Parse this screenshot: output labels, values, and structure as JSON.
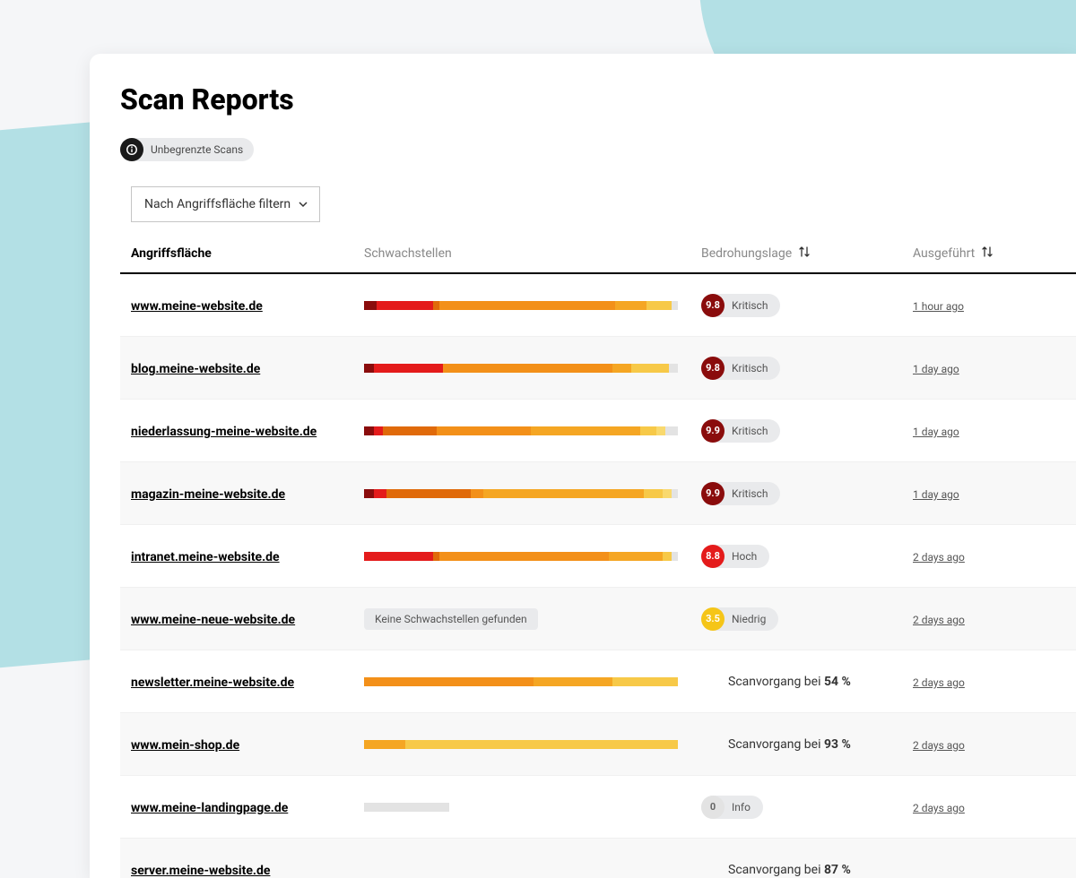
{
  "page": {
    "title": "Scan Reports"
  },
  "info_pill": {
    "text": "Unbegrenzte Scans"
  },
  "filter": {
    "label": "Nach Angriffsfläche filtern"
  },
  "columns": {
    "attack": "Angriffsfläche",
    "vuln": "Schwachstellen",
    "threat": "Bedrohungslage",
    "executed": "Ausgeführt"
  },
  "colors": {
    "dark_red": "#8a0c0c",
    "red": "#e41b1b",
    "dark_orange": "#e06a0a",
    "orange": "#f39019",
    "yellow_orange": "#f5a623",
    "yellow": "#f7c948",
    "light_yellow": "#f9d96e",
    "grey": "#e3e3e3",
    "score_critical": "#8a0c0c",
    "score_high": "#e41b1b",
    "score_low": "#f5c518",
    "score_zero": "#e3e3e3"
  },
  "scan_prefix": "Scanvorgang bei ",
  "rows": [
    {
      "url": "www.meine-website.de",
      "segments": [
        {
          "color": "dark_red",
          "pct": 4
        },
        {
          "color": "red",
          "pct": 18
        },
        {
          "color": "dark_orange",
          "pct": 2
        },
        {
          "color": "orange",
          "pct": 56
        },
        {
          "color": "yellow_orange",
          "pct": 10
        },
        {
          "color": "yellow",
          "pct": 8
        },
        {
          "color": "grey",
          "pct": 2
        }
      ],
      "threat": {
        "score": "9.8",
        "label": "Kritisch",
        "color": "score_critical"
      },
      "executed": "1 hour ago",
      "alt": false
    },
    {
      "url": "blog.meine-website.de",
      "segments": [
        {
          "color": "dark_red",
          "pct": 3
        },
        {
          "color": "red",
          "pct": 22
        },
        {
          "color": "orange",
          "pct": 54
        },
        {
          "color": "yellow_orange",
          "pct": 6
        },
        {
          "color": "yellow",
          "pct": 12
        },
        {
          "color": "grey",
          "pct": 3
        }
      ],
      "threat": {
        "score": "9.8",
        "label": "Kritisch",
        "color": "score_critical"
      },
      "executed": "1 day ago",
      "alt": true
    },
    {
      "url": "niederlassung-meine-website.de",
      "segments": [
        {
          "color": "dark_red",
          "pct": 3
        },
        {
          "color": "red",
          "pct": 3
        },
        {
          "color": "dark_orange",
          "pct": 17
        },
        {
          "color": "orange",
          "pct": 30
        },
        {
          "color": "yellow_orange",
          "pct": 35
        },
        {
          "color": "yellow",
          "pct": 5
        },
        {
          "color": "light_yellow",
          "pct": 3
        },
        {
          "color": "grey",
          "pct": 4
        }
      ],
      "threat": {
        "score": "9.9",
        "label": "Kritisch",
        "color": "score_critical"
      },
      "executed": "1 day ago",
      "alt": false
    },
    {
      "url": "magazin-meine-website.de",
      "segments": [
        {
          "color": "dark_red",
          "pct": 3
        },
        {
          "color": "red",
          "pct": 4
        },
        {
          "color": "dark_orange",
          "pct": 27
        },
        {
          "color": "orange",
          "pct": 4
        },
        {
          "color": "yellow_orange",
          "pct": 51
        },
        {
          "color": "yellow",
          "pct": 6
        },
        {
          "color": "light_yellow",
          "pct": 3
        },
        {
          "color": "grey",
          "pct": 2
        }
      ],
      "threat": {
        "score": "9.9",
        "label": "Kritisch",
        "color": "score_critical"
      },
      "executed": "1 day ago",
      "alt": true
    },
    {
      "url": "intranet.meine-website.de",
      "segments": [
        {
          "color": "red",
          "pct": 22
        },
        {
          "color": "dark_orange",
          "pct": 2
        },
        {
          "color": "orange",
          "pct": 54
        },
        {
          "color": "yellow_orange",
          "pct": 17
        },
        {
          "color": "yellow",
          "pct": 3
        },
        {
          "color": "grey",
          "pct": 2
        }
      ],
      "threat": {
        "score": "8.8",
        "label": "Hoch",
        "color": "score_high"
      },
      "executed": "2 days ago",
      "alt": false
    },
    {
      "url": "www.meine-neue-website.de",
      "no_vuln": "Keine Schwachstellen gefunden",
      "threat": {
        "score": "3.5",
        "label": "Niedrig",
        "color": "score_low"
      },
      "executed": "2 days ago",
      "alt": true
    },
    {
      "url": "newsletter.meine-website.de",
      "segments": [
        {
          "color": "orange",
          "pct": 54
        },
        {
          "color": "yellow_orange",
          "pct": 25
        },
        {
          "color": "yellow",
          "pct": 21
        }
      ],
      "scan": "54 %",
      "executed": "2 days ago",
      "alt": false
    },
    {
      "url": "www.mein-shop.de",
      "segments": [
        {
          "color": "yellow_orange",
          "pct": 13
        },
        {
          "color": "yellow",
          "pct": 87
        }
      ],
      "scan": "93 %",
      "executed": "2 days ago",
      "alt": true
    },
    {
      "url": "www.meine-landingpage.de",
      "segments": [
        {
          "color": "grey",
          "pct": 27
        }
      ],
      "threat": {
        "score": "0",
        "label": "Info",
        "color": "score_zero",
        "zero": true
      },
      "executed": "2 days ago",
      "alt": false
    },
    {
      "url": "server.meine-website.de",
      "scan": "87 %",
      "executed": "",
      "alt": true
    }
  ]
}
